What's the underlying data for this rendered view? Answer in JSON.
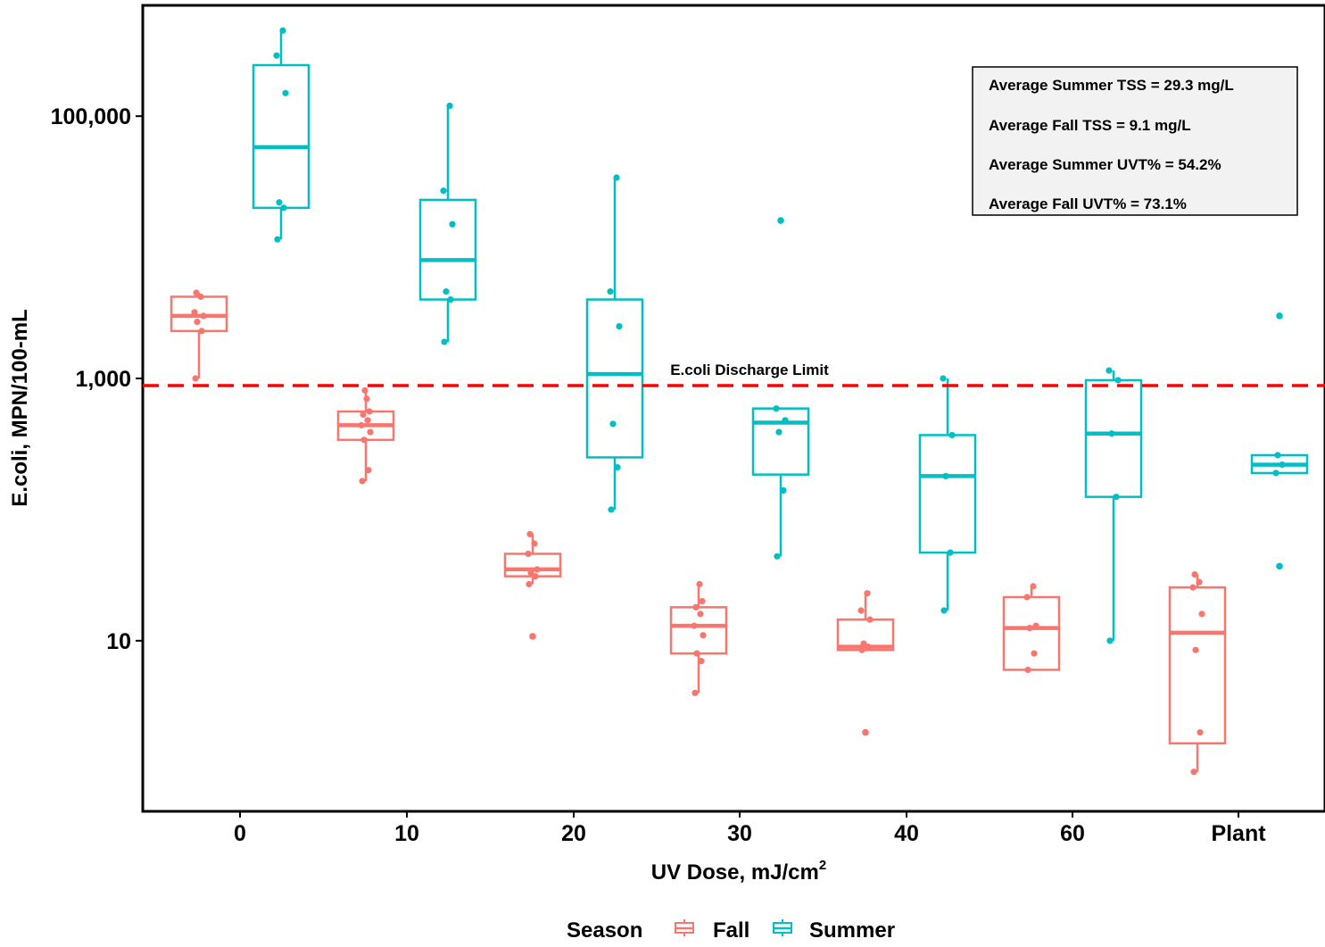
{
  "chart_data": {
    "type": "boxplot",
    "xlabel": "UV Dose, mJ/cm",
    "xlabel_superscript": "2",
    "ylabel": "E.coli, MPN/100-mL",
    "y_scale": "log10",
    "ylim": [
      0.5,
      700000
    ],
    "y_ticks": [
      {
        "value": 10,
        "label": "10"
      },
      {
        "value": 1000,
        "label": "1,000"
      },
      {
        "value": 100000,
        "label": "100,000"
      }
    ],
    "categories": [
      "0",
      "10",
      "20",
      "30",
      "40",
      "60",
      "Plant"
    ],
    "grid": false,
    "legend": {
      "title": "Season",
      "position": "bottom"
    },
    "reference_line": {
      "value": 1000,
      "label": "E.coli Discharge Limit",
      "color": "#ff0000",
      "style": "dashed"
    },
    "annotations": [
      "Average Summer TSS = 29.3 mg/L",
      "Average Fall TSS = 9.1 mg/L",
      "Average Summer UVT% = 54.2%",
      "Average Fall UVT% = 73.1%"
    ],
    "series": [
      {
        "name": "Fall",
        "color": "#f8766d",
        "boxes": [
          {
            "category": "0",
            "whisker_low": 1000,
            "q1": 2300,
            "median": 3000,
            "q3": 4200,
            "whisker_high": 4500,
            "points": [
              1000,
              2300,
              2700,
              3000,
              3200,
              4200,
              4500
            ],
            "outliers": []
          },
          {
            "category": "10",
            "whisker_low": 165,
            "q1": 340,
            "median": 440,
            "q3": 560,
            "whisker_high": 810,
            "points": [
              165,
              200,
              340,
              390,
              440,
              480,
              530,
              560,
              700,
              810
            ],
            "outliers": []
          },
          {
            "category": "20",
            "whisker_low": 27,
            "q1": 31,
            "median": 35,
            "q3": 46,
            "whisker_high": 65,
            "points": [
              27,
              31,
              33,
              35,
              46,
              55,
              65
            ],
            "outliers": [
              10.8
            ]
          },
          {
            "category": "30",
            "whisker_low": 4,
            "q1": 8,
            "median": 13,
            "q3": 18,
            "whisker_high": 27,
            "points": [
              4,
              7,
              8,
              11,
              13,
              16,
              18,
              20,
              27
            ],
            "outliers": []
          },
          {
            "category": "40",
            "whisker_low": 8.5,
            "q1": 8.5,
            "median": 9,
            "q3": 14.5,
            "whisker_high": 23,
            "points": [
              8.5,
              9,
              9.5,
              14.5,
              17,
              23
            ],
            "outliers": [
              2
            ]
          },
          {
            "category": "60",
            "whisker_low": 6,
            "q1": 6,
            "median": 12.5,
            "q3": 21.5,
            "whisker_high": 26,
            "points": [
              6,
              8,
              12.5,
              13,
              21.5,
              26
            ],
            "outliers": []
          },
          {
            "category": "Plant",
            "whisker_low": 1,
            "q1": 1.65,
            "median": 11.5,
            "q3": 25.5,
            "whisker_high": 32,
            "points": [
              1,
              2,
              8.5,
              16,
              25.5,
              28,
              32
            ],
            "outliers": []
          }
        ]
      },
      {
        "name": "Summer",
        "color": "#00bfc4",
        "boxes": [
          {
            "category": "0",
            "whisker_low": 11500,
            "q1": 20000,
            "median": 58000,
            "q3": 245000,
            "whisker_high": 450000,
            "points": [
              11500,
              20000,
              22000,
              150000,
              290000,
              450000
            ],
            "outliers": []
          },
          {
            "category": "10",
            "whisker_low": 1900,
            "q1": 4000,
            "median": 8000,
            "q3": 23000,
            "whisker_high": 120000,
            "points": [
              1900,
              4000,
              4600,
              15000,
              27000,
              120000
            ],
            "outliers": []
          },
          {
            "category": "20",
            "whisker_low": 100,
            "q1": 250,
            "median": 1080,
            "q3": 4000,
            "whisker_high": 34000,
            "points": [
              100,
              210,
              450,
              2500,
              4600,
              34000
            ],
            "outliers": []
          },
          {
            "category": "30",
            "whisker_low": 44,
            "q1": 185,
            "median": 460,
            "q3": 590,
            "whisker_high": 590,
            "points": [
              44,
              140,
              390,
              480,
              590
            ],
            "outliers": [
              16000
            ]
          },
          {
            "category": "40",
            "whisker_low": 17,
            "q1": 47,
            "median": 180,
            "q3": 370,
            "whisker_high": 1000,
            "points": [
              17,
              47,
              180,
              370,
              1000
            ],
            "outliers": []
          },
          {
            "category": "60",
            "whisker_low": 10,
            "q1": 125,
            "median": 380,
            "q3": 970,
            "whisker_high": 1150,
            "points": [
              10,
              125,
              380,
              970,
              1150
            ],
            "outliers": []
          },
          {
            "category": "Plant",
            "whisker_low": 190,
            "q1": 190,
            "median": 220,
            "q3": 260,
            "whisker_high": 260,
            "points": [
              190,
              220,
              260
            ],
            "outliers": [
              3000,
              37
            ]
          }
        ]
      }
    ]
  }
}
